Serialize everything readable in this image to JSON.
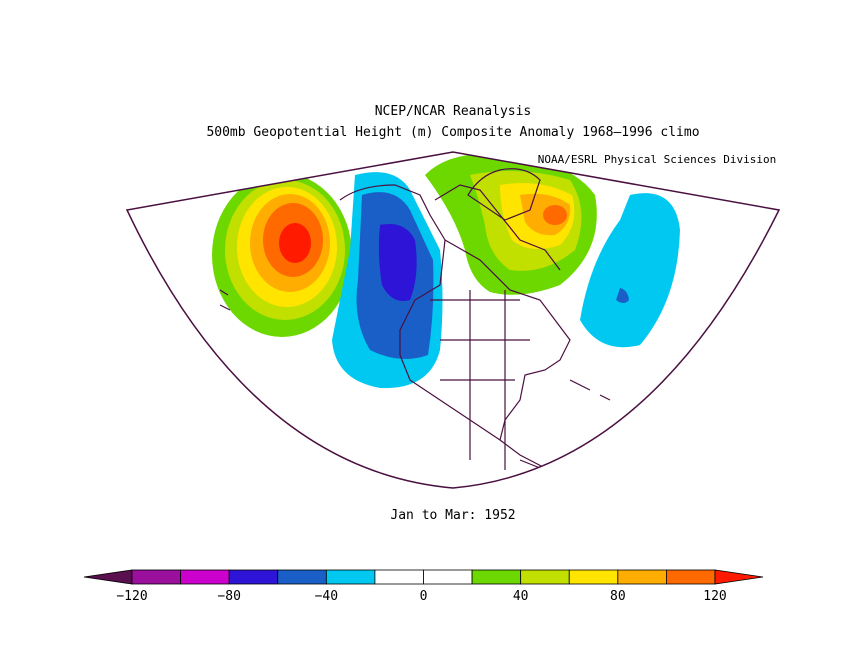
{
  "title": "NCEP/NCAR Reanalysis",
  "subtitle": "500mb Geopotential Height (m) Composite Anomaly 1968–1996 climo",
  "credit": "NOAA/ESRL Physical Sciences Division",
  "period": "Jan to Mar: 1952",
  "colorbar": {
    "colors": [
      "#5a0f4e",
      "#9a0f9b",
      "#cc00cc",
      "#2e14d6",
      "#1a5fc8",
      "#00c8f0",
      "#ffffff",
      "#ffffff",
      "#6cd800",
      "#c2e000",
      "#ffe400",
      "#ffad00",
      "#ff6a00",
      "#ff1a00"
    ],
    "tick_labels": [
      "−120",
      "−80",
      "−40",
      "0",
      "40",
      "80",
      "120"
    ]
  },
  "colors": {
    "map_outline": "#4a1040"
  }
}
